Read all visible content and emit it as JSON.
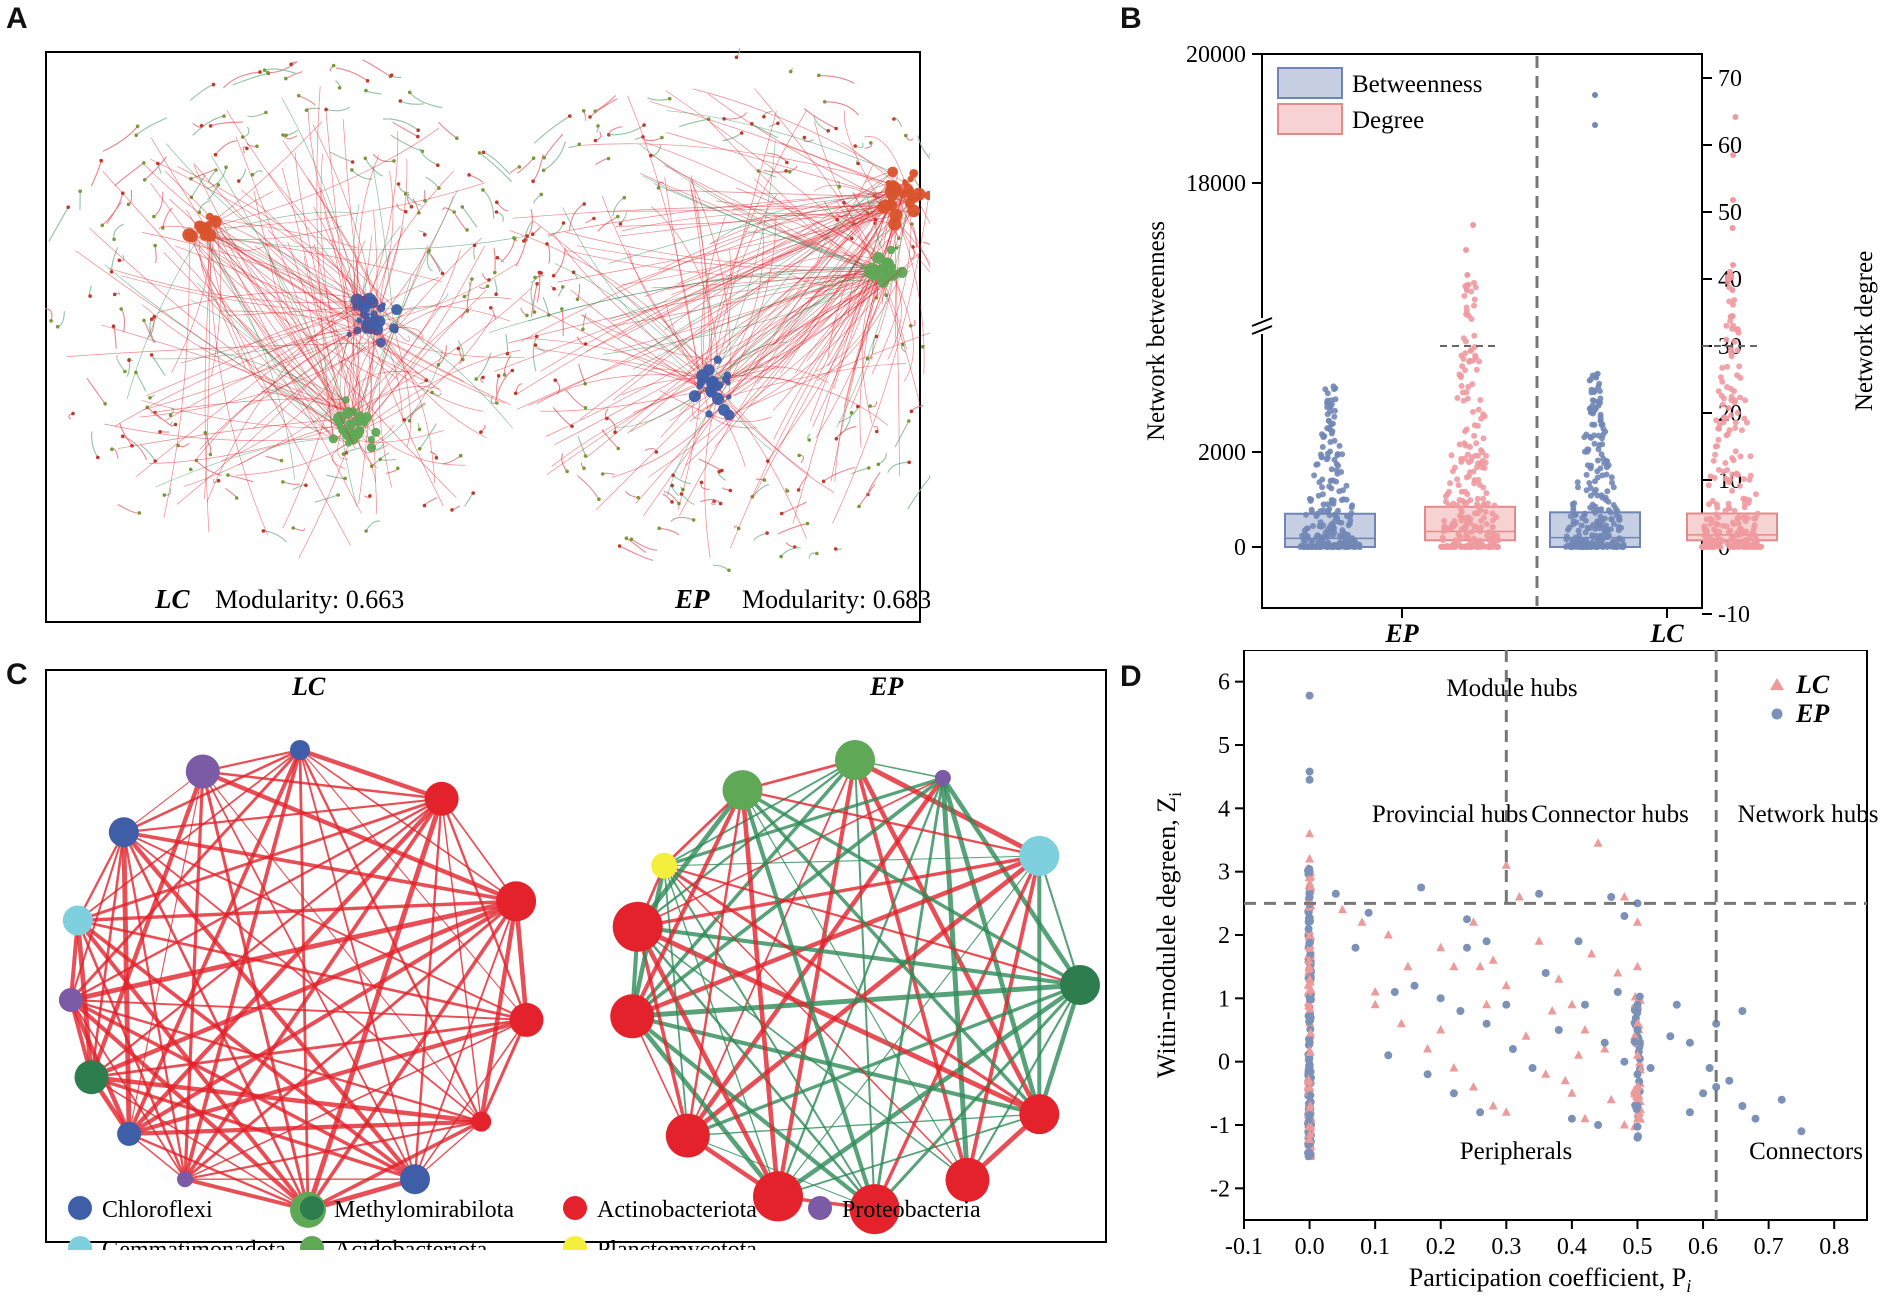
{
  "colors": {
    "chloroflexi": "#3f5ea8",
    "methylomirabilota": "#2e7d4f",
    "actinobacteriota": "#e3222b",
    "proteobacteria": "#7b5aa6",
    "gemmatimonadota": "#7fd0df",
    "acidobacteriota": "#5fa855",
    "planctomycetota": "#f4ee3c",
    "betweenness_box": "#c7cfe3",
    "betweenness_edge": "#6f86b5",
    "degree_box": "#f6d2d2",
    "degree_edge": "#e58a8a",
    "ep_dot": "#7b91b8",
    "lc_tri": "#ec9a9a",
    "pos_edge": "#e3222b",
    "neg_edge": "#2e8b57"
  },
  "panel_a": {
    "letter": "A",
    "left": {
      "name": "LC",
      "caption": "Modularity: 0.663"
    },
    "right": {
      "name": "EP",
      "caption": "Modularity: 0.683"
    }
  },
  "panel_c": {
    "letter": "C",
    "left_title": "LC",
    "right_title": "EP",
    "legend": [
      {
        "label": "Chloroflexi",
        "color": "#3f5ea8"
      },
      {
        "label": "Methylomirabilota",
        "color": "#2e7d4f"
      },
      {
        "label": "Actinobacteriota",
        "color": "#e3222b"
      },
      {
        "label": "Proteobacteria",
        "color": "#7b5aa6"
      },
      {
        "label": "Gemmatimonadota",
        "color": "#7fd0df"
      },
      {
        "label": "Acidobacteriota",
        "color": "#5fa855"
      },
      {
        "label": "Planctomycetota",
        "color": "#f4ee3c"
      }
    ]
  },
  "chart_data": [
    {
      "panel": "B",
      "type": "box",
      "categories": [
        "EP",
        "LC"
      ],
      "ylabel_left": "Network betweenness",
      "ylabel_right": "Network degree",
      "yticks_left": [
        "20000",
        "18000",
        "2000",
        "0"
      ],
      "yticks_right": [
        "70",
        "60",
        "50",
        "40",
        "30",
        "20",
        "10",
        "0",
        "-10"
      ],
      "ylim_right": [
        -10,
        70
      ],
      "axis_break": true,
      "legend": [
        "Betweenness",
        "Degree"
      ],
      "series": [
        {
          "name": "Betweenness",
          "category": "EP",
          "q1": 0,
          "q3": 700,
          "max_point": 3400
        },
        {
          "name": "Degree",
          "category": "EP",
          "q1": 1,
          "q3": 6,
          "max_point": 40,
          "threshold": 30
        },
        {
          "name": "Betweenness",
          "category": "LC",
          "q1": 0,
          "q3": 730,
          "max_point": 19400
        },
        {
          "name": "Degree",
          "category": "LC",
          "q1": 1,
          "q3": 5,
          "max_point": 62,
          "threshold": 30
        }
      ]
    },
    {
      "panel": "D",
      "type": "scatter",
      "xlabel": "Participation coefficient, P",
      "xlabel_sub": "i",
      "ylabel": "Witin-modulele degreen, Z",
      "ylabel_sub": "i",
      "xlim": [
        -0.1,
        0.85
      ],
      "ylim": [
        -2.5,
        6.5
      ],
      "xticks": [
        "-0.1",
        "0.0",
        "0.1",
        "0.2",
        "0.3",
        "0.4",
        "0.5",
        "0.6",
        "0.7",
        "0.8"
      ],
      "yticks": [
        "6",
        "5",
        "4",
        "3",
        "2",
        "1",
        "0",
        "-1",
        "-2"
      ],
      "thresholds": {
        "z": 2.5,
        "p1": 0.3,
        "p2": 0.62
      },
      "region_labels": [
        "Module hubs",
        "Provincial hubs",
        "Connector hubs",
        "Network hubs",
        "Peripherals",
        "Connectors"
      ],
      "legend": [
        "LC",
        "EP"
      ],
      "series": [
        {
          "name": "LC",
          "marker": "triangle",
          "points": [
            [
              0,
              3.6
            ],
            [
              0,
              3.2
            ],
            [
              0,
              2.9
            ],
            [
              0.3,
              3.1
            ],
            [
              0.44,
              3.45
            ],
            [
              0.05,
              2.4
            ],
            [
              0.08,
              2.2
            ],
            [
              0.12,
              2.0
            ],
            [
              0.15,
              1.5
            ],
            [
              0.1,
              0.9
            ],
            [
              0.2,
              1.8
            ],
            [
              0.22,
              1.5
            ],
            [
              0.25,
              2.2
            ],
            [
              0.28,
              1.6
            ],
            [
              0.3,
              1.2
            ],
            [
              0.32,
              2.6
            ],
            [
              0.35,
              1.9
            ],
            [
              0.38,
              1.3
            ],
            [
              0.4,
              0.9
            ],
            [
              0.42,
              0.5
            ],
            [
              0.45,
              0.2
            ],
            [
              0.48,
              2.6
            ],
            [
              0.5,
              2.2
            ],
            [
              0.5,
              1.5
            ],
            [
              0.5,
              0.6
            ],
            [
              0.5,
              0.1
            ],
            [
              0.5,
              -0.4
            ],
            [
              0.5,
              -0.9
            ],
            [
              0.18,
              0.2
            ],
            [
              0.22,
              -0.1
            ],
            [
              0.25,
              -0.4
            ],
            [
              0.28,
              -0.7
            ],
            [
              0.33,
              0.4
            ],
            [
              0.36,
              -0.2
            ],
            [
              0.4,
              -0.5
            ],
            [
              0.42,
              -0.9
            ],
            [
              0.46,
              -0.6
            ],
            [
              0.48,
              -1.0
            ],
            [
              0.3,
              -0.8
            ],
            [
              0.27,
              0.9
            ],
            [
              0.2,
              0.5
            ],
            [
              0.14,
              0.6
            ],
            [
              0.1,
              1.1
            ],
            [
              0.43,
              1.7
            ],
            [
              0.47,
              1.4
            ],
            [
              0.26,
              1.5
            ],
            [
              0.37,
              0.8
            ],
            [
              0.41,
              0.1
            ],
            [
              0.39,
              -0.3
            ]
          ]
        },
        {
          "name": "EP",
          "marker": "circle",
          "points": [
            [
              0,
              5.78
            ],
            [
              0,
              4.58
            ],
            [
              0,
              4.45
            ],
            [
              0,
              3.0
            ],
            [
              0,
              2.6
            ],
            [
              0.04,
              2.65
            ],
            [
              0.09,
              2.35
            ],
            [
              0.17,
              2.75
            ],
            [
              0.24,
              2.25
            ],
            [
              0.27,
              1.9
            ],
            [
              0.35,
              2.65
            ],
            [
              0.46,
              2.6
            ],
            [
              0.48,
              2.3
            ],
            [
              0.5,
              2.5
            ],
            [
              0.16,
              1.2
            ],
            [
              0.2,
              1.0
            ],
            [
              0.23,
              0.8
            ],
            [
              0.27,
              0.6
            ],
            [
              0.31,
              0.2
            ],
            [
              0.34,
              -0.1
            ],
            [
              0.38,
              0.5
            ],
            [
              0.42,
              0.9
            ],
            [
              0.45,
              0.3
            ],
            [
              0.48,
              0.0
            ],
            [
              0.5,
              0.9
            ],
            [
              0.5,
              0.5
            ],
            [
              0.5,
              -0.2
            ],
            [
              0.5,
              -0.7
            ],
            [
              0.5,
              -1.2
            ],
            [
              0.56,
              0.9
            ],
            [
              0.58,
              0.3
            ],
            [
              0.6,
              -0.5
            ],
            [
              0.62,
              0.6
            ],
            [
              0.62,
              -0.4
            ],
            [
              0.64,
              -0.3
            ],
            [
              0.66,
              -0.7
            ],
            [
              0.68,
              -0.9
            ],
            [
              0.72,
              -0.6
            ],
            [
              0.75,
              -1.1
            ],
            [
              0.66,
              0.8
            ],
            [
              0.58,
              -0.8
            ],
            [
              0.12,
              0.1
            ],
            [
              0.18,
              -0.2
            ],
            [
              0.22,
              -0.5
            ],
            [
              0.26,
              -0.8
            ],
            [
              0.44,
              -1.0
            ],
            [
              0.4,
              -0.9
            ],
            [
              0.3,
              0.9
            ],
            [
              0.36,
              1.4
            ],
            [
              0.07,
              1.8
            ],
            [
              0.13,
              1.1
            ],
            [
              0.24,
              1.8
            ],
            [
              0.41,
              1.9
            ],
            [
              0.47,
              1.1
            ],
            [
              0.52,
              -0.1
            ],
            [
              0.55,
              0.4
            ],
            [
              0.61,
              -0.1
            ]
          ]
        }
      ]
    }
  ]
}
